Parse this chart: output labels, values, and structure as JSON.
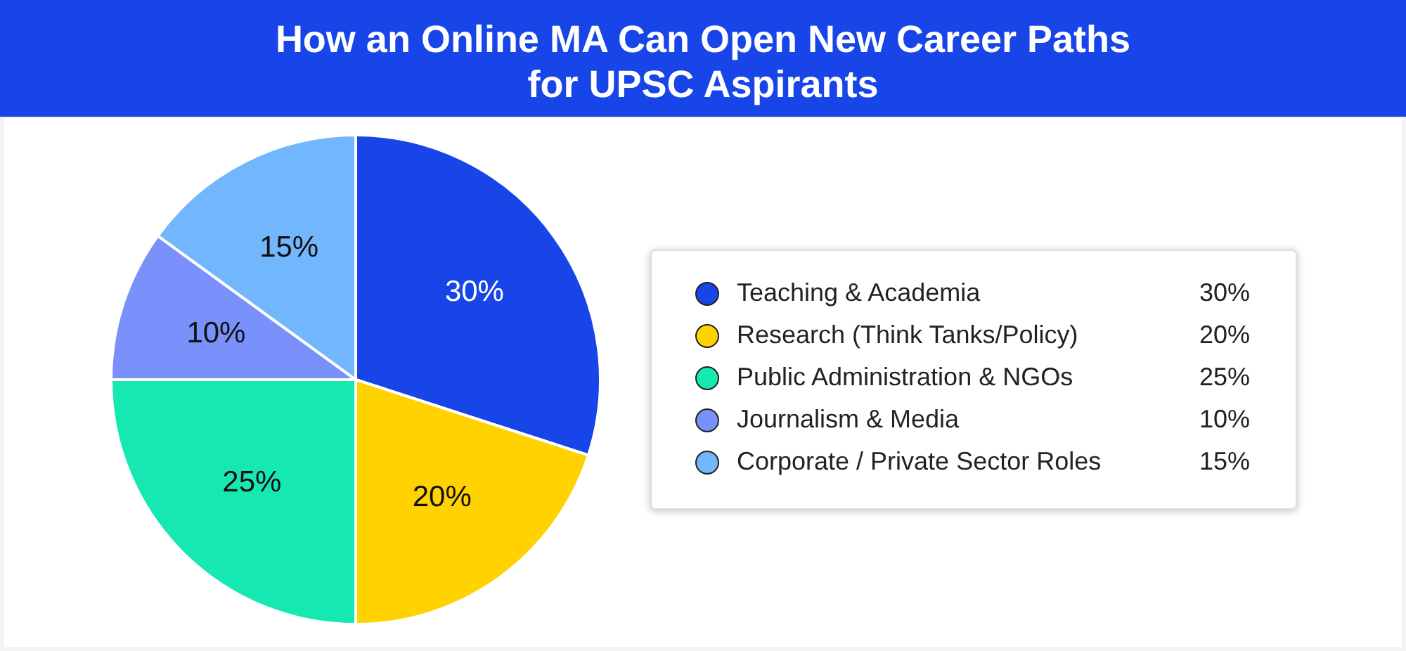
{
  "chart_data": {
    "type": "pie",
    "title": "How an Online MA Can Open New Career Paths for UPSC Aspirants",
    "categories": [
      "Teaching & Academia",
      "Research (Think Tanks/Policy)",
      "Public Administration & NGOs",
      "Journalism & Media",
      "Corporate / Private Sector Roles"
    ],
    "values": [
      30,
      20,
      25,
      10,
      15
    ],
    "colors": [
      "#1745e8",
      "#ffd200",
      "#15e8b0",
      "#7a90fb",
      "#72b6fd"
    ],
    "value_labels": [
      "30%",
      "20%",
      "25%",
      "10%",
      "15%"
    ],
    "legend": "right"
  }
}
